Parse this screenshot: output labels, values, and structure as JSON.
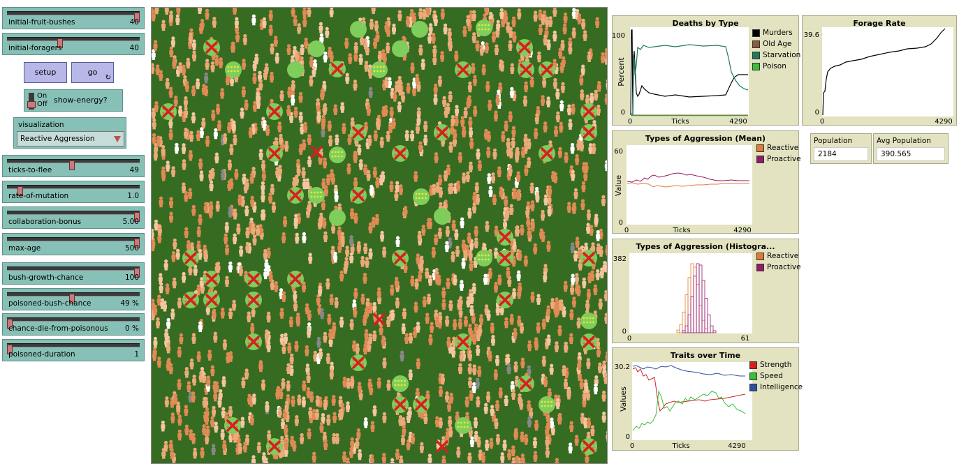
{
  "sliders": [
    {
      "label": "initial-fruit-bushes",
      "value": "40",
      "fraction": 1.0
    },
    {
      "label": "initial-foragers",
      "value": "40",
      "fraction": 0.4
    },
    {
      "label": "ticks-to-flee",
      "value": "49",
      "fraction": 0.49
    },
    {
      "label": "rate-of-mutation",
      "value": "1.0",
      "fraction": 0.1
    },
    {
      "label": "collaboration-bonus",
      "value": "5.00",
      "fraction": 1.0
    },
    {
      "label": "max-age",
      "value": "500",
      "fraction": 1.0
    },
    {
      "label": "bush-growth-chance",
      "value": "100",
      "fraction": 1.0
    },
    {
      "label": "poisoned-bush-chance",
      "value": "49 %",
      "fraction": 0.49
    },
    {
      "label": "chance-die-from-poisonous",
      "value": "0 %",
      "fraction": 0.0
    },
    {
      "label": "poisoned-duration",
      "value": "1",
      "fraction": 0.0
    }
  ],
  "buttons": {
    "setup": "setup",
    "go": "go"
  },
  "switch": {
    "on": "On",
    "off": "Off",
    "label": "show-energy?",
    "state": false
  },
  "chooser": {
    "label": "visualization",
    "value": "Reactive Aggression"
  },
  "plots": {
    "deaths": {
      "title": "Deaths by Type",
      "ylabel": "Percent",
      "xlabel": "Ticks",
      "ymax": "100",
      "ymin": "0",
      "xmin": "0",
      "xmax": "4290",
      "legend": [
        {
          "name": "Murders",
          "color": "#000000"
        },
        {
          "name": "Old Age",
          "color": "#8d5a3c"
        },
        {
          "name": "Starvation",
          "color": "#1e7a5a"
        },
        {
          "name": "Poison",
          "color": "#39c03a"
        }
      ]
    },
    "forage": {
      "title": "Forage Rate",
      "ymax": "39.6",
      "ymin": "0",
      "xmin": "0",
      "xmax": "4290"
    },
    "aggr_mean": {
      "title": "Types of Aggression (Mean)",
      "ylabel": "Value",
      "xlabel": "Ticks",
      "ymax": "60",
      "ymin": "0",
      "xmin": "0",
      "xmax": "4290",
      "legend": [
        {
          "name": "Reactive",
          "color": "#e27a35"
        },
        {
          "name": "Proactive",
          "color": "#94196b"
        }
      ]
    },
    "aggr_hist": {
      "title": "Types of Aggression (Histogra...",
      "ymax": "382",
      "ymin": "0",
      "xmin": "0",
      "xmax": "61",
      "legend": [
        {
          "name": "Reactive",
          "color": "#e27a35"
        },
        {
          "name": "Proactive",
          "color": "#94196b"
        }
      ]
    },
    "traits": {
      "title": "Traits over Time",
      "ylabel": "Values",
      "xlabel": "Ticks",
      "ymax": "30.2",
      "ymin": "0",
      "xmin": "0",
      "xmax": "4290",
      "legend": [
        {
          "name": "Strength",
          "color": "#d42020"
        },
        {
          "name": "Speed",
          "color": "#35c035"
        },
        {
          "name": "Intelligence",
          "color": "#2c4fa0"
        }
      ]
    }
  },
  "monitors": [
    {
      "label": "Population",
      "value": "2184"
    },
    {
      "label": "Avg Population",
      "value": "390.565"
    }
  ],
  "world": {
    "background": "#366c21",
    "bush_color": "#7fce5c",
    "fruit_colors": [
      "#e8e83a",
      "#e8654a"
    ],
    "poison_mark_color": "#d42020",
    "agent_colors": [
      "#e08a55",
      "#ecaa7a",
      "#f4c6a0",
      "#ffffff",
      "#888888"
    ]
  }
}
